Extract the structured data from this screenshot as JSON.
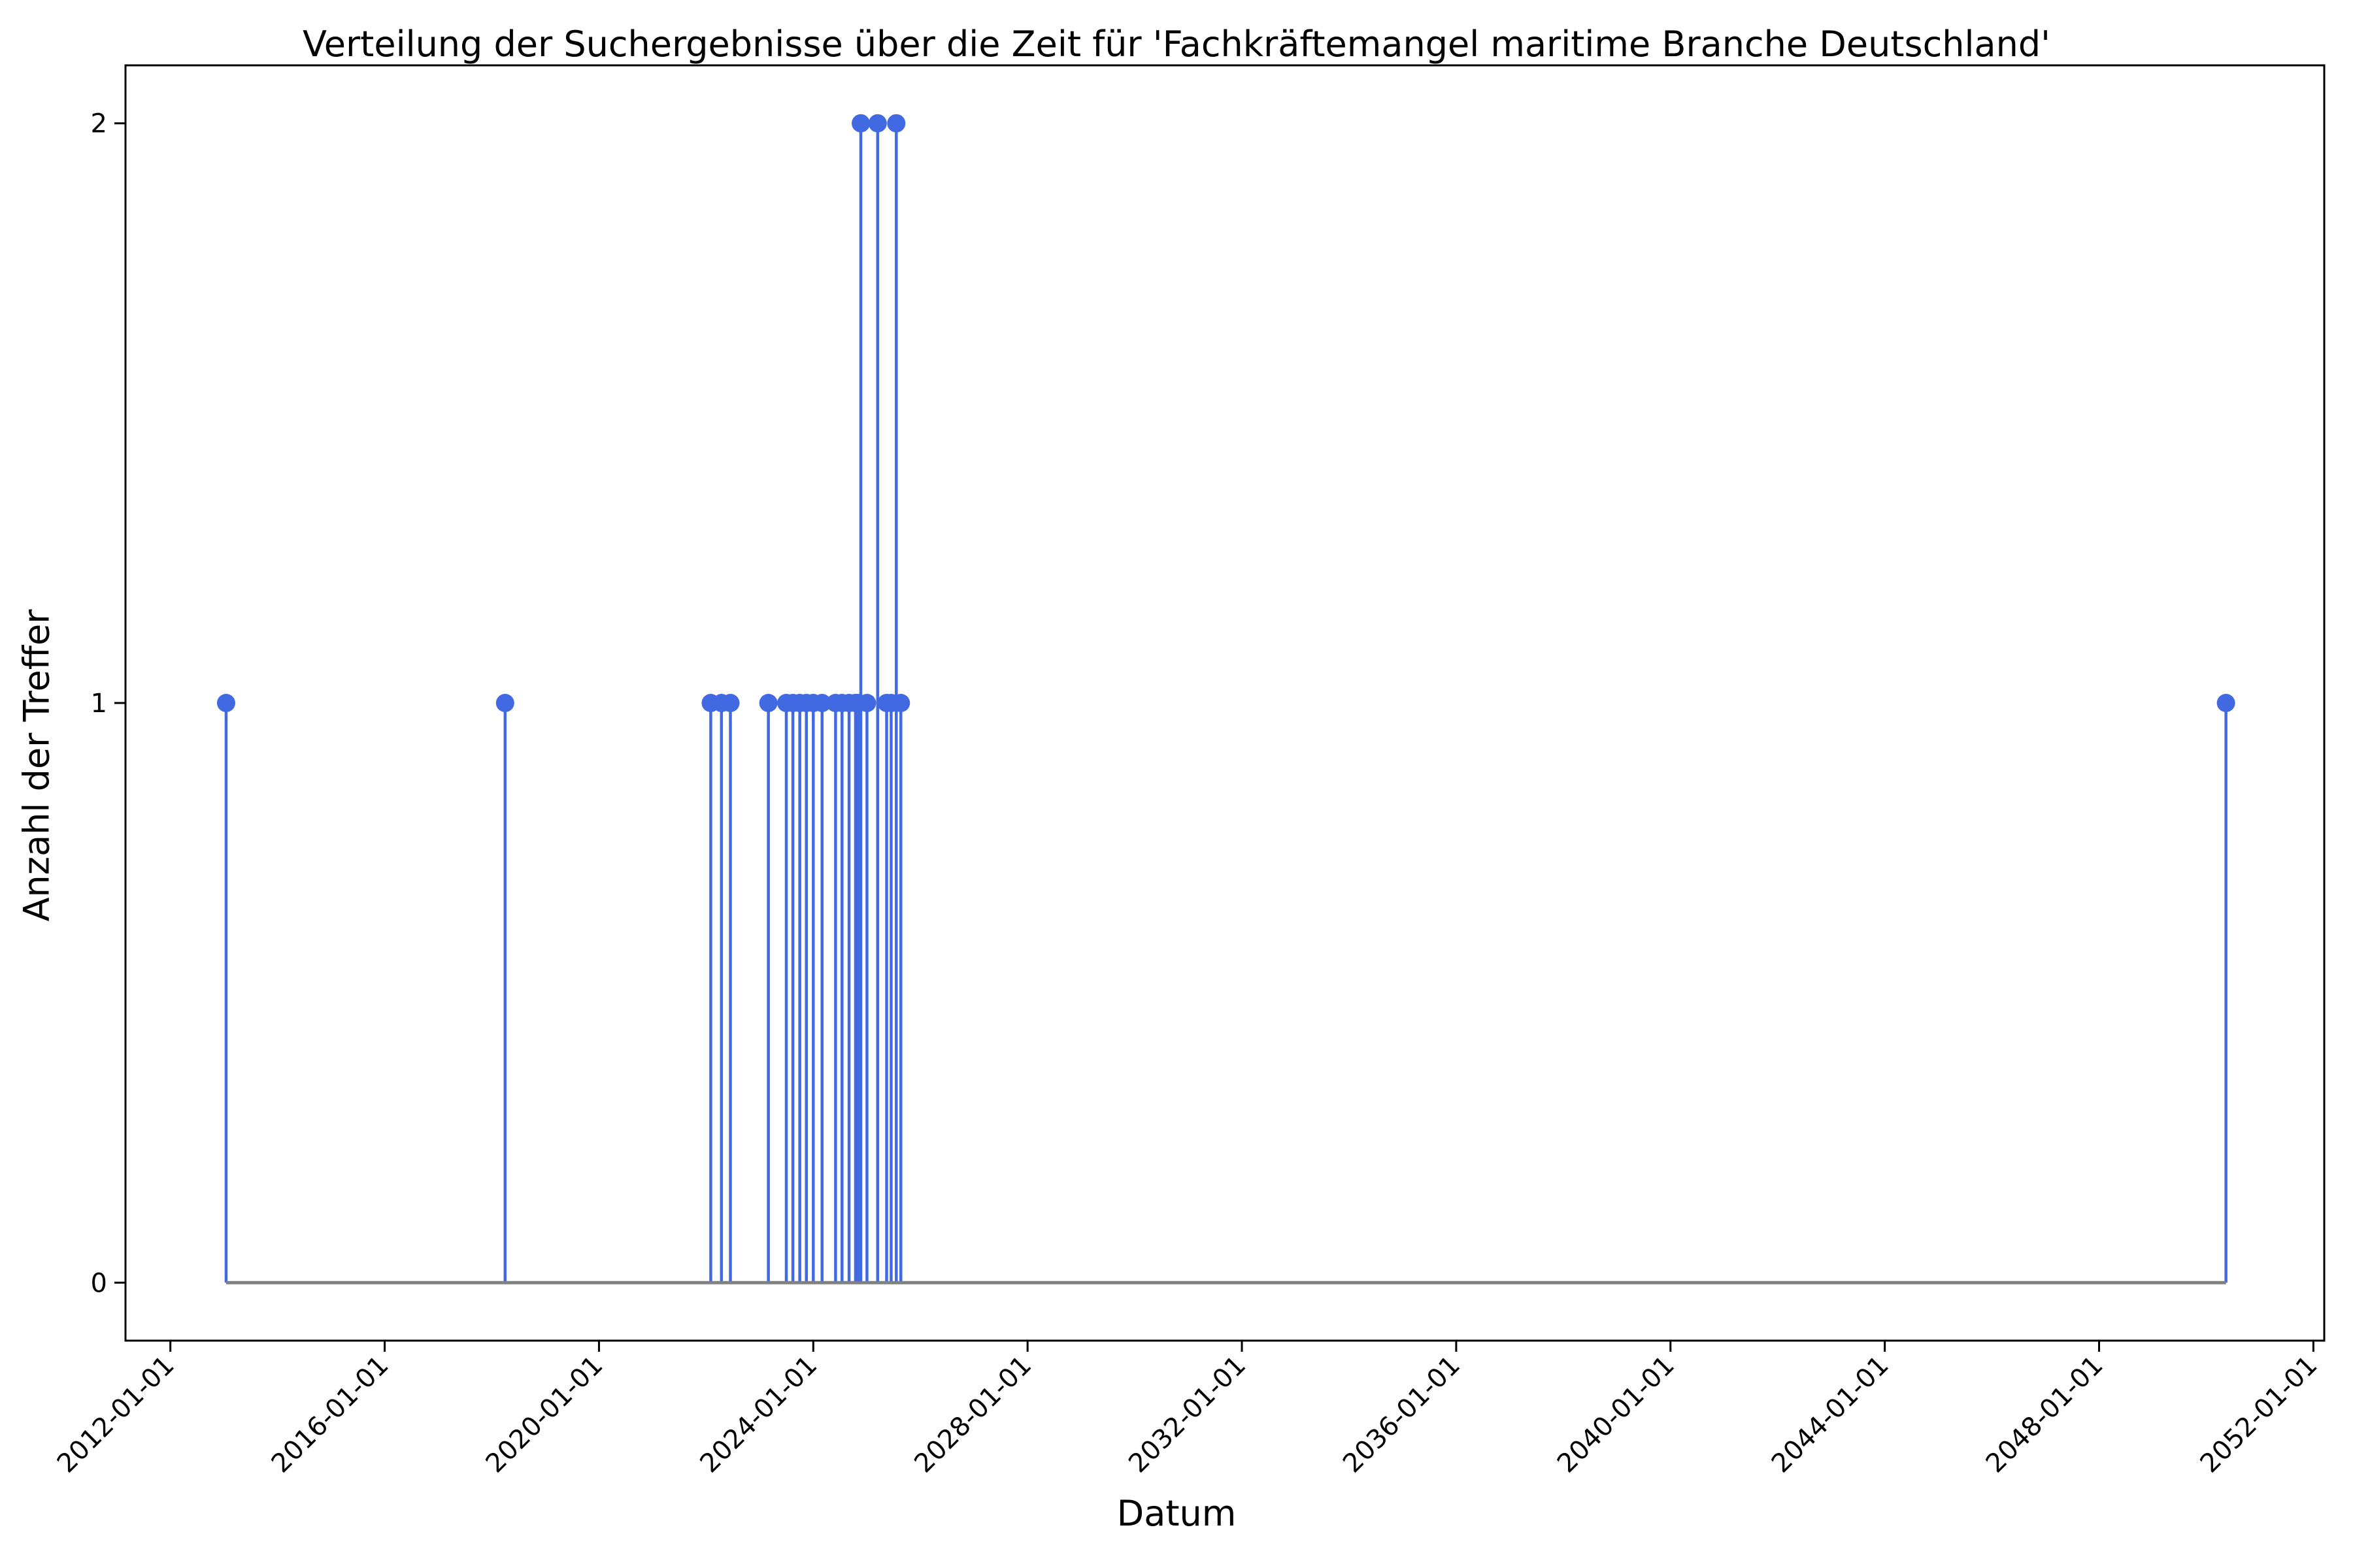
{
  "chart_data": {
    "type": "stem",
    "title": "Verteilung der Suchergebnisse über die Zeit für 'Fachkräftemangel maritime Branche Deutschland'",
    "xlabel": "Datum",
    "ylabel": "Anzahl der Treffer",
    "xlim": [
      "2011-03-01",
      "2052-03-15"
    ],
    "ylim": [
      -0.1,
      2.1
    ],
    "x_ticks": [
      "2012-01-01",
      "2016-01-01",
      "2020-01-01",
      "2024-01-01",
      "2028-01-01",
      "2032-01-01",
      "2036-01-01",
      "2040-01-01",
      "2044-01-01",
      "2048-01-01",
      "2052-01-01"
    ],
    "y_ticks": [
      0,
      1,
      2
    ],
    "grid": false,
    "colors": {
      "stem": "#4169e1",
      "baseline": "#808080"
    },
    "points": [
      {
        "x": "2013-01-15",
        "y": 1
      },
      {
        "x": "2018-04-01",
        "y": 1
      },
      {
        "x": "2022-02-01",
        "y": 1
      },
      {
        "x": "2022-04-15",
        "y": 1
      },
      {
        "x": "2022-06-15",
        "y": 1
      },
      {
        "x": "2023-03-01",
        "y": 1
      },
      {
        "x": "2023-07-01",
        "y": 1
      },
      {
        "x": "2023-08-15",
        "y": 1
      },
      {
        "x": "2023-10-01",
        "y": 1
      },
      {
        "x": "2023-11-15",
        "y": 1
      },
      {
        "x": "2024-01-01",
        "y": 1
      },
      {
        "x": "2024-03-01",
        "y": 1
      },
      {
        "x": "2024-06-01",
        "y": 1
      },
      {
        "x": "2024-07-15",
        "y": 1
      },
      {
        "x": "2024-09-01",
        "y": 1
      },
      {
        "x": "2024-10-15",
        "y": 1
      },
      {
        "x": "2024-11-01",
        "y": 1
      },
      {
        "x": "2024-11-20",
        "y": 2
      },
      {
        "x": "2025-01-01",
        "y": 1
      },
      {
        "x": "2025-03-15",
        "y": 2
      },
      {
        "x": "2025-05-15",
        "y": 1
      },
      {
        "x": "2025-06-15",
        "y": 1
      },
      {
        "x": "2025-07-20",
        "y": 2
      },
      {
        "x": "2025-08-20",
        "y": 1
      },
      {
        "x": "2050-05-15",
        "y": 1
      }
    ]
  }
}
